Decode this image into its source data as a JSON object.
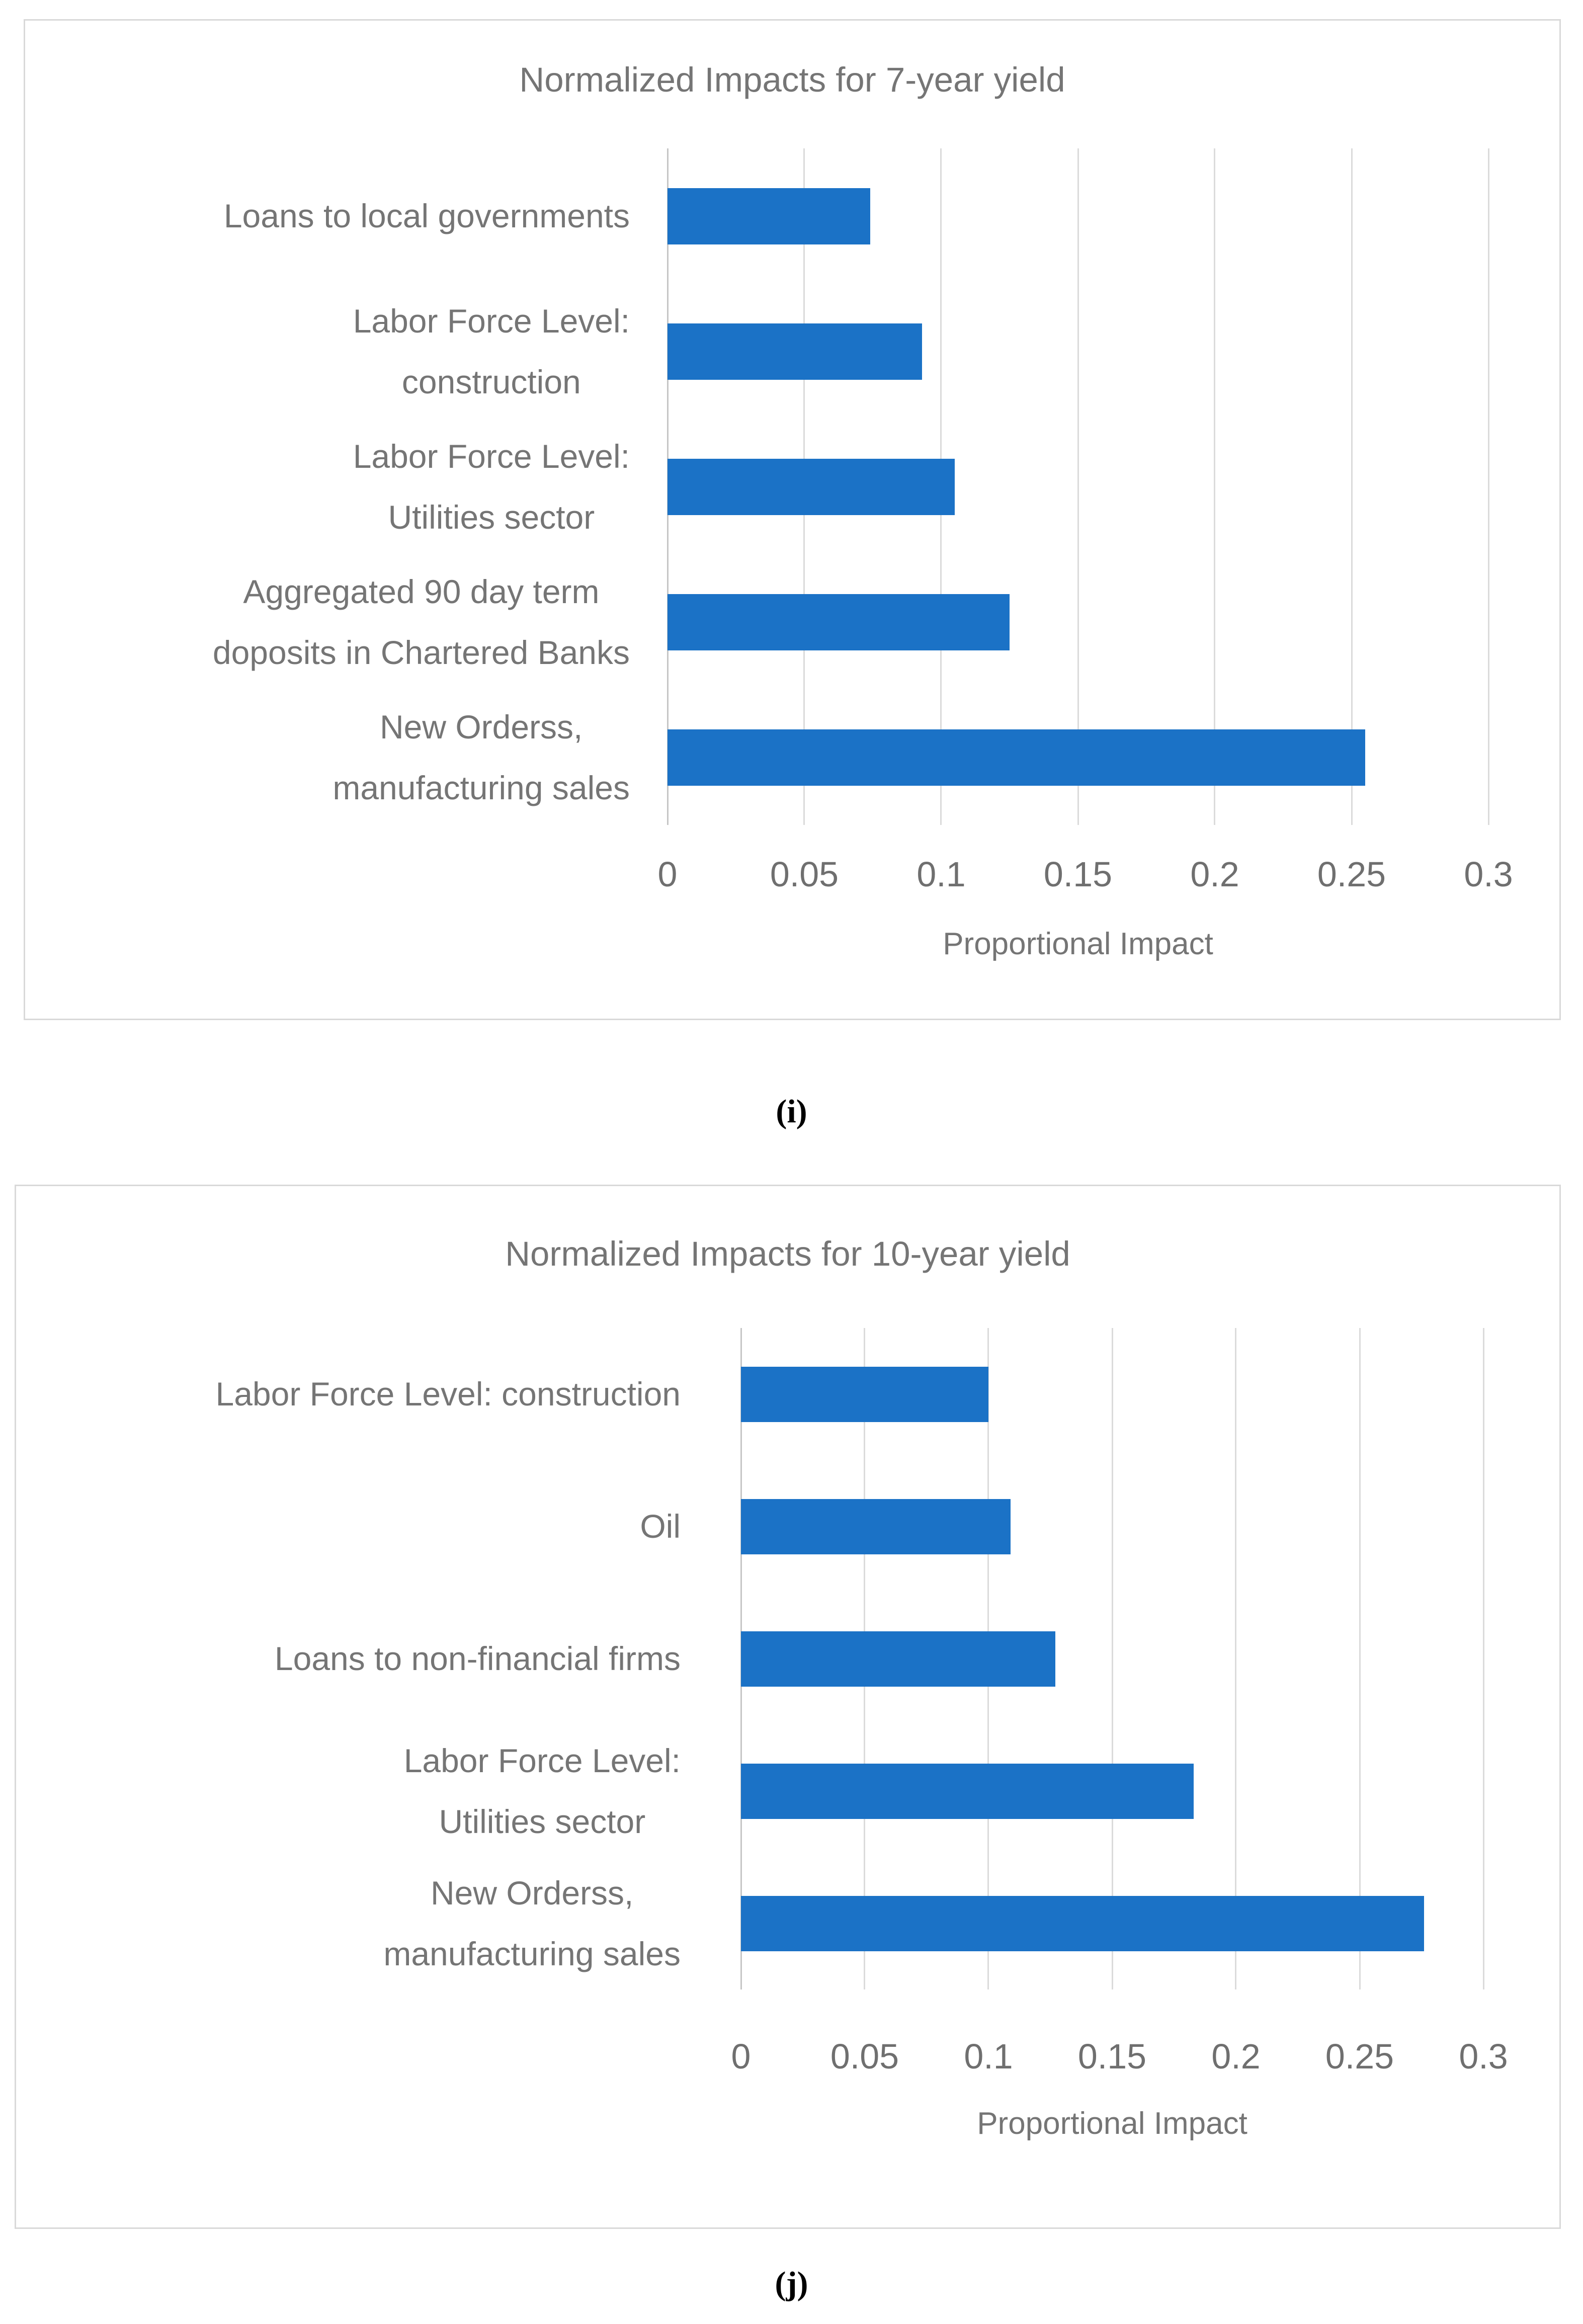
{
  "page": {
    "background": "#ffffff"
  },
  "figure_labels": {
    "i": "(i)",
    "j": "(j)"
  },
  "colors": {
    "bar": "#1B72C6",
    "gridline": "#DBDBDB",
    "axis_line": "#C6C6C6",
    "chart_border": "#D9D9D9",
    "text": "#757575"
  },
  "chart_data": [
    {
      "type": "bar",
      "orientation": "horizontal",
      "title": "Normalized Impacts for 7-year yield",
      "xlabel": "Proportional Impact",
      "ylabel": "",
      "xlim": [
        0,
        0.3
      ],
      "xticks": [
        0,
        0.05,
        0.1,
        0.15,
        0.2,
        0.25,
        0.3
      ],
      "xtick_labels": [
        "0",
        "0.05",
        "0.1",
        "0.15",
        "0.2",
        "0.25",
        "0.3"
      ],
      "grid": "vertical",
      "legend": "none",
      "bar_color": "#1B72C6",
      "categories": [
        "Loans to local governments",
        "Labor Force Level:\nconstruction",
        "Labor Force Level:\nUtilities sector",
        "Aggregated 90 day term\ndoposits in Chartered Banks",
        "New Orderss,\nmanufacturing sales"
      ],
      "values": [
        0.074,
        0.093,
        0.105,
        0.125,
        0.255
      ]
    },
    {
      "type": "bar",
      "orientation": "horizontal",
      "title": "Normalized Impacts for 10-year yield",
      "xlabel": "Proportional Impact",
      "ylabel": "",
      "xlim": [
        0,
        0.3
      ],
      "xticks": [
        0,
        0.05,
        0.1,
        0.15,
        0.2,
        0.25,
        0.3
      ],
      "xtick_labels": [
        "0",
        "0.05",
        "0.1",
        "0.15",
        "0.2",
        "0.25",
        "0.3"
      ],
      "grid": "vertical",
      "legend": "none",
      "bar_color": "#1B72C6",
      "categories": [
        "Labor Force Level: construction",
        "Oil",
        "Loans to non-financial firms",
        "Labor Force Level:\nUtilities sector",
        "New Orderss,\nmanufacturing sales"
      ],
      "values": [
        0.1,
        0.109,
        0.127,
        0.183,
        0.276
      ]
    }
  ]
}
